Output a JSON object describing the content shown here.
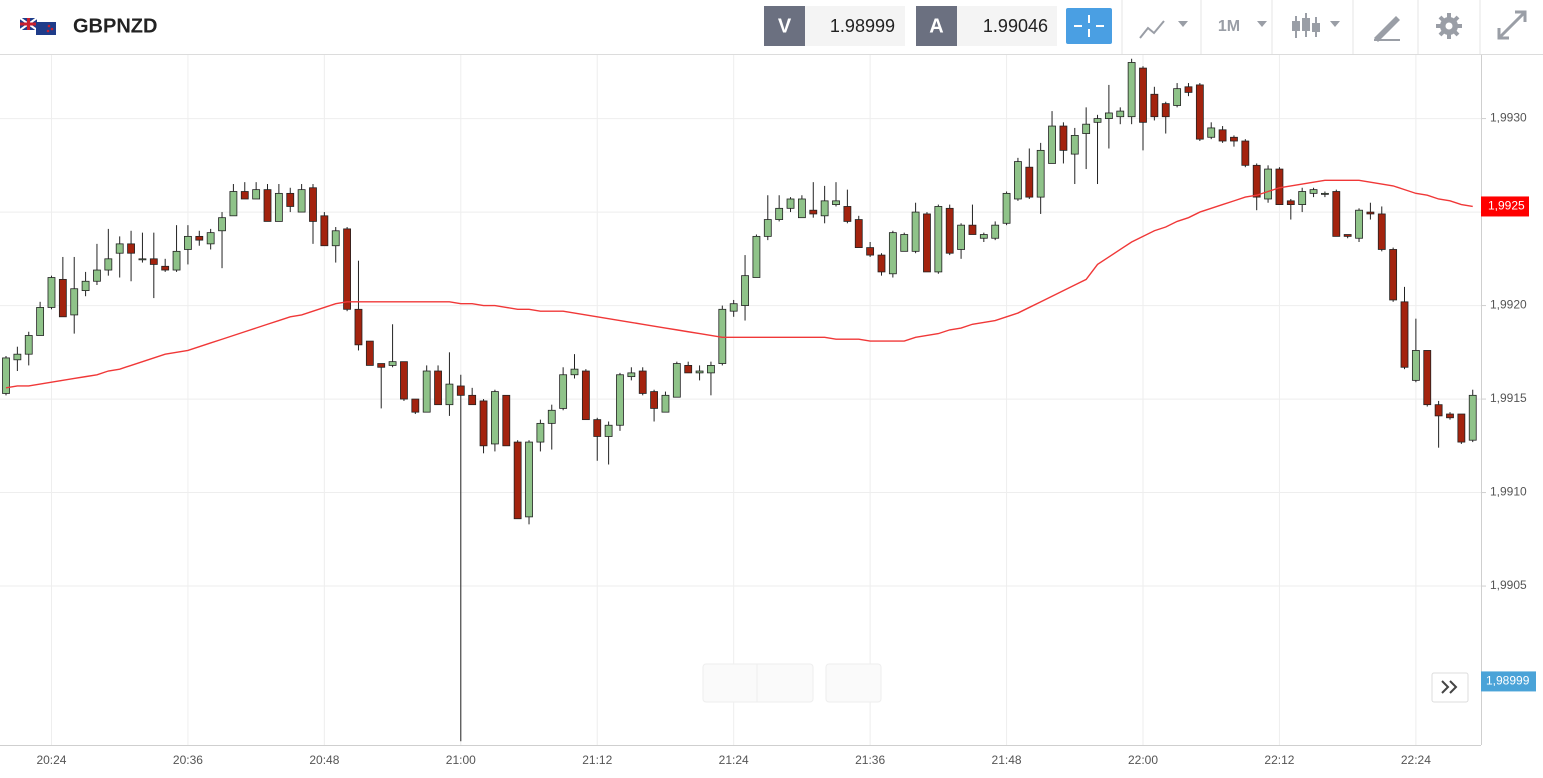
{
  "toolbar": {
    "symbol": "GBPNZD",
    "bid_tag": "V",
    "bid": "1.98999",
    "ask_tag": "A",
    "ask": "1.99046",
    "timeframe": "1M"
  },
  "chart_data": {
    "type": "candlestick",
    "title": "GBPNZD",
    "categories": [
      null,
      null,
      null,
      null,
      "20:24",
      null,
      null,
      null,
      null,
      null,
      null,
      null,
      null,
      null,
      null,
      null,
      "20:36",
      null,
      null,
      null,
      null,
      null,
      null,
      null,
      null,
      null,
      null,
      null,
      "20:48",
      null,
      null,
      null,
      null,
      null,
      null,
      null,
      null,
      null,
      null,
      null,
      "21:00",
      null,
      null,
      null,
      null,
      null,
      null,
      null,
      null,
      null,
      null,
      null,
      "21:12",
      null,
      null,
      null,
      null,
      null,
      null,
      null,
      null,
      null,
      null,
      null,
      "21:24",
      null,
      null,
      null,
      null,
      null,
      null,
      null,
      null,
      null,
      null,
      null,
      "21:36",
      null,
      null,
      null,
      null,
      null,
      null,
      null,
      null,
      null,
      null,
      null,
      "21:48",
      null,
      null,
      null,
      null,
      null,
      null,
      null,
      null,
      null,
      null,
      null,
      "22:00",
      null,
      null,
      null,
      null,
      null,
      null,
      null,
      null,
      null,
      null,
      null,
      "22:12",
      null,
      null,
      null,
      null,
      null,
      null,
      null,
      null,
      null,
      null,
      null,
      "22:24",
      null,
      null,
      null,
      null,
      null
    ],
    "ohlc": [
      [
        1.99153,
        1.99173,
        1.99152,
        1.99172
      ],
      [
        1.99171,
        1.99178,
        1.99165,
        1.99174
      ],
      [
        1.99174,
        1.99186,
        1.99168,
        1.99184
      ],
      [
        1.99184,
        1.99202,
        1.99184,
        1.99199
      ],
      [
        1.99199,
        1.99216,
        1.99198,
        1.99215
      ],
      [
        1.99214,
        1.99226,
        1.99194,
        1.99194
      ],
      [
        1.99195,
        1.99226,
        1.99185,
        1.99209
      ],
      [
        1.99208,
        1.99218,
        1.99205,
        1.99213
      ],
      [
        1.99213,
        1.99233,
        1.99211,
        1.99219
      ],
      [
        1.99219,
        1.99241,
        1.99216,
        1.99225
      ],
      [
        1.99228,
        1.99237,
        1.99215,
        1.99233
      ],
      [
        1.99233,
        1.9924,
        1.99213,
        1.99228
      ],
      [
        1.99225,
        1.99239,
        1.99223,
        1.99225
      ],
      [
        1.99225,
        1.99239,
        1.99204,
        1.99222
      ],
      [
        1.99221,
        1.99225,
        1.99218,
        1.99219
      ],
      [
        1.99219,
        1.99243,
        1.99218,
        1.99229
      ],
      [
        1.9923,
        1.99243,
        1.99222,
        1.99237
      ],
      [
        1.99237,
        1.9924,
        1.99232,
        1.99235
      ],
      [
        1.99233,
        1.99241,
        1.9923,
        1.99239
      ],
      [
        1.9924,
        1.9925,
        1.9922,
        1.99247
      ],
      [
        1.99248,
        1.99265,
        1.99248,
        1.99261
      ],
      [
        1.99261,
        1.99266,
        1.99257,
        1.99257
      ],
      [
        1.99257,
        1.99266,
        1.99257,
        1.99262
      ],
      [
        1.99262,
        1.99265,
        1.99245,
        1.99245
      ],
      [
        1.99245,
        1.99265,
        1.99245,
        1.9926
      ],
      [
        1.9926,
        1.99263,
        1.9925,
        1.99253
      ],
      [
        1.9925,
        1.99265,
        1.9925,
        1.99262
      ],
      [
        1.99263,
        1.99265,
        1.99233,
        1.99245
      ],
      [
        1.99248,
        1.9925,
        1.99232,
        1.99232
      ],
      [
        1.99232,
        1.99242,
        1.99223,
        1.9924
      ],
      [
        1.99241,
        1.99242,
        1.99197,
        1.99198
      ],
      [
        1.99198,
        1.99224,
        1.99176,
        1.99179
      ],
      [
        1.99181,
        1.99181,
        1.99168,
        1.99168
      ],
      [
        1.99169,
        1.99169,
        1.99145,
        1.99167
      ],
      [
        1.99168,
        1.9919,
        1.99167,
        1.9917
      ],
      [
        1.9917,
        1.9917,
        1.99149,
        1.9915
      ],
      [
        1.9915,
        1.9915,
        1.99142,
        1.99143
      ],
      [
        1.99143,
        1.99168,
        1.99143,
        1.99165
      ],
      [
        1.99165,
        1.99168,
        1.99147,
        1.99147
      ],
      [
        1.99147,
        1.99175,
        1.99141,
        1.99158
      ],
      [
        1.99157,
        1.99163,
        1.98967,
        1.99152
      ],
      [
        1.99152,
        1.99156,
        1.99147,
        1.99147
      ],
      [
        1.99149,
        1.9915,
        1.99121,
        1.99125
      ],
      [
        1.99126,
        1.99155,
        1.99122,
        1.99154
      ],
      [
        1.99152,
        1.99152,
        1.99125,
        1.99125
      ],
      [
        1.99127,
        1.99128,
        1.99086,
        1.99086
      ],
      [
        1.99087,
        1.99128,
        1.99083,
        1.99127
      ],
      [
        1.99127,
        1.99139,
        1.99122,
        1.99137
      ],
      [
        1.99137,
        1.99147,
        1.99123,
        1.99144
      ],
      [
        1.99145,
        1.99167,
        1.99144,
        1.99163
      ],
      [
        1.99163,
        1.99174,
        1.99161,
        1.99166
      ],
      [
        1.99165,
        1.99166,
        1.99139,
        1.99139
      ],
      [
        1.99139,
        1.9914,
        1.99117,
        1.9913
      ],
      [
        1.9913,
        1.99138,
        1.99115,
        1.99136
      ],
      [
        1.99136,
        1.99164,
        1.99133,
        1.99163
      ],
      [
        1.99162,
        1.99167,
        1.9916,
        1.99164
      ],
      [
        1.99165,
        1.99167,
        1.99152,
        1.99153
      ],
      [
        1.99154,
        1.99155,
        1.99138,
        1.99145
      ],
      [
        1.99143,
        1.99154,
        1.99143,
        1.99152
      ],
      [
        1.99151,
        1.9917,
        1.99151,
        1.99169
      ],
      [
        1.99168,
        1.9917,
        1.99164,
        1.99164
      ],
      [
        1.99164,
        1.99168,
        1.9916,
        1.99165
      ],
      [
        1.99164,
        1.9917,
        1.99152,
        1.99168
      ],
      [
        1.99169,
        1.992,
        1.99168,
        1.99198
      ],
      [
        1.99197,
        1.99203,
        1.99194,
        1.99201
      ],
      [
        1.992,
        1.99227,
        1.99192,
        1.99216
      ],
      [
        1.99215,
        1.99238,
        1.99215,
        1.99237
      ],
      [
        1.99237,
        1.99259,
        1.99235,
        1.99246
      ],
      [
        1.99246,
        1.99259,
        1.99245,
        1.99252
      ],
      [
        1.99252,
        1.99258,
        1.9925,
        1.99257
      ],
      [
        1.99247,
        1.99259,
        1.99247,
        1.99257
      ],
      [
        1.99251,
        1.99266,
        1.99247,
        1.99249
      ],
      [
        1.99248,
        1.99264,
        1.99244,
        1.99256
      ],
      [
        1.99254,
        1.99266,
        1.99253,
        1.99256
      ],
      [
        1.99253,
        1.99262,
        1.99244,
        1.99245
      ],
      [
        1.99246,
        1.99248,
        1.99231,
        1.99231
      ],
      [
        1.99231,
        1.99234,
        1.99226,
        1.99227
      ],
      [
        1.99227,
        1.99228,
        1.99216,
        1.99218
      ],
      [
        1.99217,
        1.9924,
        1.99215,
        1.99239
      ],
      [
        1.99229,
        1.99239,
        1.99229,
        1.99238
      ],
      [
        1.99229,
        1.99255,
        1.99228,
        1.9925
      ],
      [
        1.99249,
        1.9925,
        1.99218,
        1.99218
      ],
      [
        1.99218,
        1.99254,
        1.99217,
        1.99253
      ],
      [
        1.99252,
        1.99254,
        1.99227,
        1.99228
      ],
      [
        1.9923,
        1.99244,
        1.99225,
        1.99243
      ],
      [
        1.99243,
        1.99254,
        1.99238,
        1.99238
      ],
      [
        1.99236,
        1.99239,
        1.99234,
        1.99238
      ],
      [
        1.99236,
        1.99245,
        1.99235,
        1.99243
      ],
      [
        1.99244,
        1.99261,
        1.99243,
        1.9926
      ],
      [
        1.99257,
        1.99279,
        1.99256,
        1.99277
      ],
      [
        1.99274,
        1.99284,
        1.99257,
        1.99258
      ],
      [
        1.99258,
        1.99287,
        1.99249,
        1.99283
      ],
      [
        1.99276,
        1.99304,
        1.99276,
        1.99296
      ],
      [
        1.99296,
        1.99298,
        1.99276,
        1.99283
      ],
      [
        1.99281,
        1.99295,
        1.99265,
        1.99291
      ],
      [
        1.99292,
        1.99306,
        1.99273,
        1.99297
      ],
      [
        1.99298,
        1.99302,
        1.99265,
        1.993
      ],
      [
        1.993,
        1.99318,
        1.99284,
        1.99303
      ],
      [
        1.99301,
        1.99306,
        1.99297,
        1.99304
      ],
      [
        1.99301,
        1.99332,
        1.99297,
        1.9933
      ],
      [
        1.99327,
        1.99328,
        1.99283,
        1.99298
      ],
      [
        1.99313,
        1.99317,
        1.99299,
        1.99301
      ],
      [
        1.99308,
        1.99309,
        1.99292,
        1.99301
      ],
      [
        1.99307,
        1.99319,
        1.99306,
        1.99316
      ],
      [
        1.99317,
        1.99319,
        1.99312,
        1.99314
      ],
      [
        1.99318,
        1.99319,
        1.99288,
        1.99289
      ],
      [
        1.9929,
        1.99298,
        1.99289,
        1.99295
      ],
      [
        1.99294,
        1.99296,
        1.99287,
        1.99288
      ],
      [
        1.9929,
        1.99291,
        1.99285,
        1.99288
      ],
      [
        1.99288,
        1.99289,
        1.99274,
        1.99275
      ],
      [
        1.99275,
        1.99276,
        1.99251,
        1.99258
      ],
      [
        1.99257,
        1.99275,
        1.99255,
        1.99273
      ],
      [
        1.99273,
        1.99274,
        1.99254,
        1.99254
      ],
      [
        1.99256,
        1.99257,
        1.99246,
        1.99254
      ],
      [
        1.99254,
        1.99263,
        1.9925,
        1.99261
      ],
      [
        1.9926,
        1.99263,
        1.99258,
        1.99262
      ],
      [
        1.9926,
        1.99261,
        1.99258,
        1.9926
      ],
      [
        1.99261,
        1.99262,
        1.99237,
        1.99237
      ],
      [
        1.99238,
        1.99238,
        1.99236,
        1.99237
      ],
      [
        1.99236,
        1.99252,
        1.99234,
        1.99251
      ],
      [
        1.9925,
        1.99255,
        1.99246,
        1.99249
      ],
      [
        1.99249,
        1.99253,
        1.99229,
        1.9923
      ],
      [
        1.9923,
        1.99231,
        1.99202,
        1.99203
      ],
      [
        1.99202,
        1.9921,
        1.99166,
        1.99167
      ],
      [
        1.9916,
        1.99193,
        1.99159,
        1.99176
      ],
      [
        1.99176,
        1.99176,
        1.99146,
        1.99147
      ],
      [
        1.99147,
        1.99149,
        1.99124,
        1.99141
      ],
      [
        1.99142,
        1.99143,
        1.99139,
        1.9914
      ],
      [
        1.99142,
        1.99142,
        1.99126,
        1.99127
      ],
      [
        1.99128,
        1.99155,
        1.99127,
        1.99152
      ]
    ],
    "up_color": "#8fc389",
    "down_color": "#a3230e",
    "ma": {
      "color": "#f03838",
      "last_label": "1,9925",
      "values": [
        1.99156,
        1.99157,
        1.99157,
        1.99158,
        1.99159,
        1.9916,
        1.99161,
        1.99162,
        1.99163,
        1.99165,
        1.99166,
        1.99168,
        1.9917,
        1.99172,
        1.99174,
        1.99175,
        1.99176,
        1.99178,
        1.9918,
        1.99182,
        1.99184,
        1.99186,
        1.99188,
        1.9919,
        1.99192,
        1.99194,
        1.99195,
        1.99197,
        1.99199,
        1.99201,
        1.99202,
        1.99202,
        1.99202,
        1.99202,
        1.99202,
        1.99202,
        1.99202,
        1.99202,
        1.99202,
        1.99202,
        1.99201,
        1.99201,
        1.992,
        1.992,
        1.99199,
        1.99198,
        1.99198,
        1.99197,
        1.99197,
        1.99197,
        1.99196,
        1.99195,
        1.99194,
        1.99193,
        1.99192,
        1.99191,
        1.9919,
        1.99189,
        1.99188,
        1.99187,
        1.99186,
        1.99185,
        1.99184,
        1.99183,
        1.99183,
        1.99183,
        1.99183,
        1.99183,
        1.99183,
        1.99183,
        1.99183,
        1.99183,
        1.99183,
        1.99182,
        1.99182,
        1.99182,
        1.99181,
        1.99181,
        1.99181,
        1.99181,
        1.99183,
        1.99184,
        1.99185,
        1.99187,
        1.99188,
        1.9919,
        1.99191,
        1.99192,
        1.99194,
        1.99196,
        1.99199,
        1.99202,
        1.99205,
        1.99208,
        1.99211,
        1.99214,
        1.99222,
        1.99226,
        1.9923,
        1.99234,
        1.99237,
        1.9924,
        1.99242,
        1.99245,
        1.99247,
        1.9925,
        1.99252,
        1.99254,
        1.99256,
        1.99258,
        1.99259,
        1.99261,
        1.99263,
        1.99264,
        1.99265,
        1.99266,
        1.99267,
        1.99267,
        1.99267,
        1.99267,
        1.99266,
        1.99265,
        1.99264,
        1.99262,
        1.9926,
        1.99259,
        1.99257,
        1.99256,
        1.99254,
        1.99253
      ]
    },
    "bid_line": {
      "value": 1.98999,
      "label": "1,98999",
      "color": "#4aa3d8"
    },
    "ylim": [
      1.98965,
      1.99334
    ],
    "yticks": [
      {
        "value": 1.9905,
        "label": "1,9905"
      },
      {
        "value": 1.991,
        "label": "1,9910"
      },
      {
        "value": 1.9915,
        "label": "1,9915"
      },
      {
        "value": 1.992,
        "label": "1,9920"
      },
      {
        "value": 1.9925,
        "label": "1,9925"
      },
      {
        "value": 1.993,
        "label": "1,9930"
      }
    ],
    "grid": true
  }
}
